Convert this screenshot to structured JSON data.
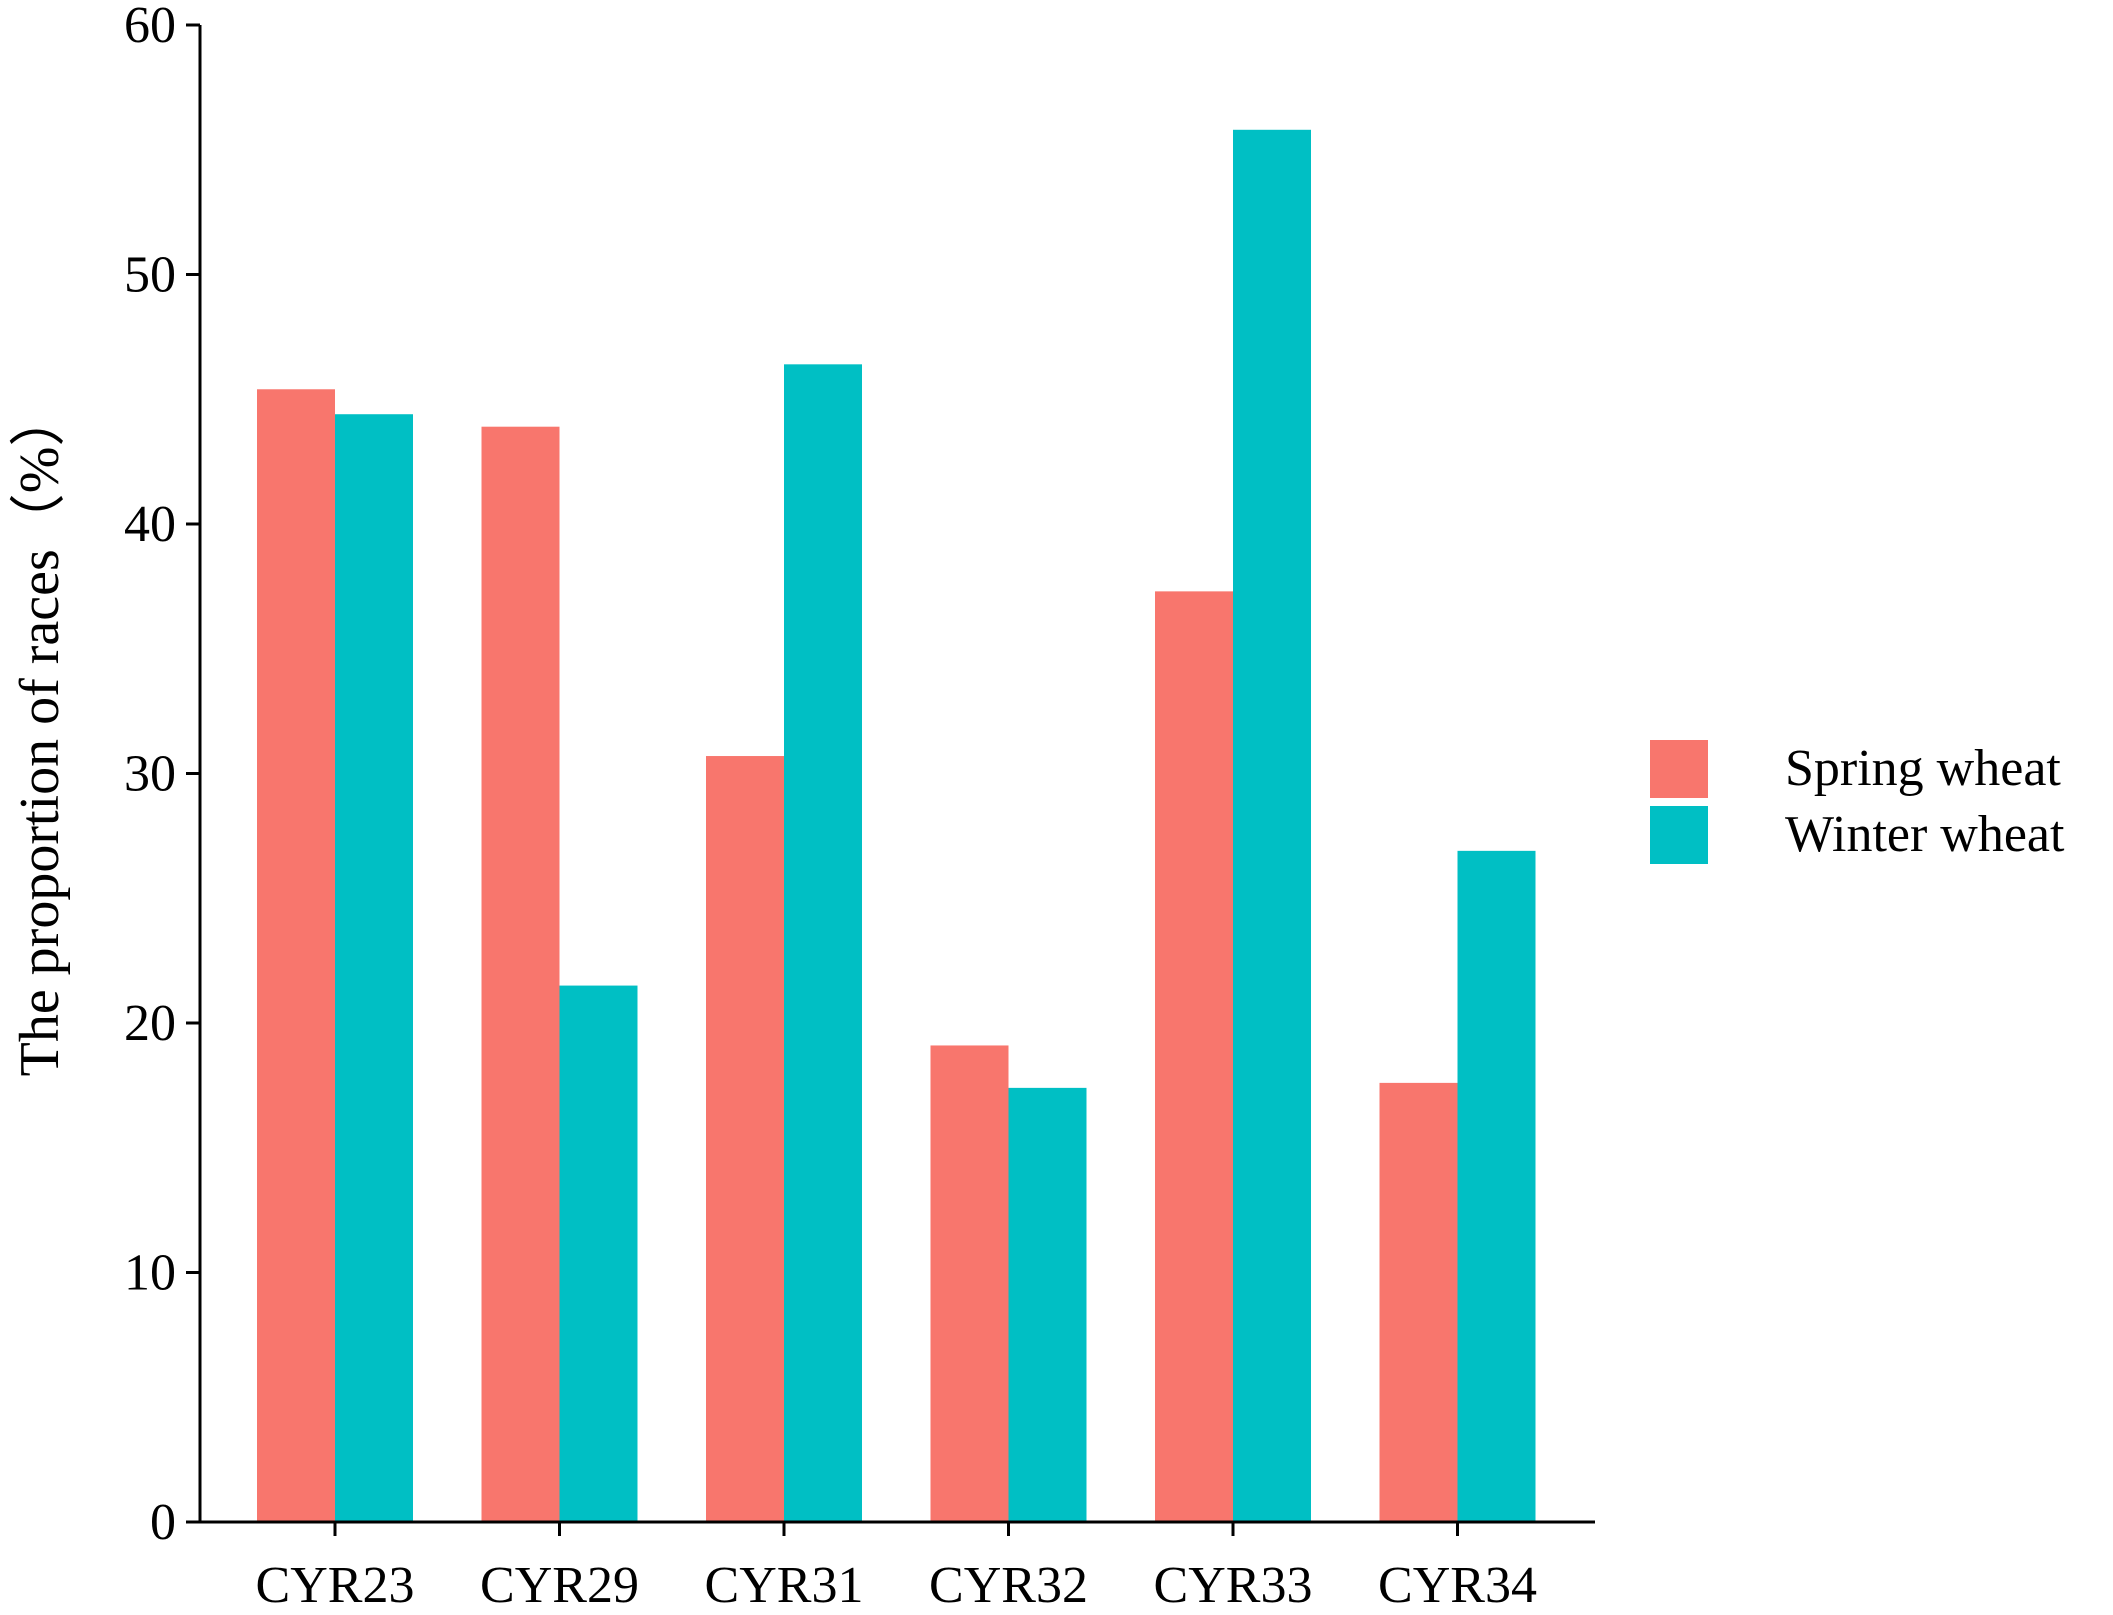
{
  "chart_data": {
    "type": "bar",
    "title": "",
    "xlabel": "",
    "ylabel": "The proportion of races（%）",
    "ylim": [
      0,
      60
    ],
    "yticks": [
      0,
      10,
      20,
      30,
      40,
      50,
      60
    ],
    "grid": false,
    "legend_position": "right",
    "categories": [
      "CYR23",
      "CYR29",
      "CYR31",
      "CYR32",
      "CYR33",
      "CYR34"
    ],
    "series": [
      {
        "name": "Spring wheat",
        "color": "#F8766D",
        "values": [
          45.4,
          43.9,
          30.7,
          19.1,
          37.3,
          17.6
        ]
      },
      {
        "name": "Winter wheat",
        "color": "#00BFC4",
        "values": [
          44.4,
          21.5,
          46.4,
          17.4,
          55.8,
          26.9
        ]
      }
    ]
  }
}
